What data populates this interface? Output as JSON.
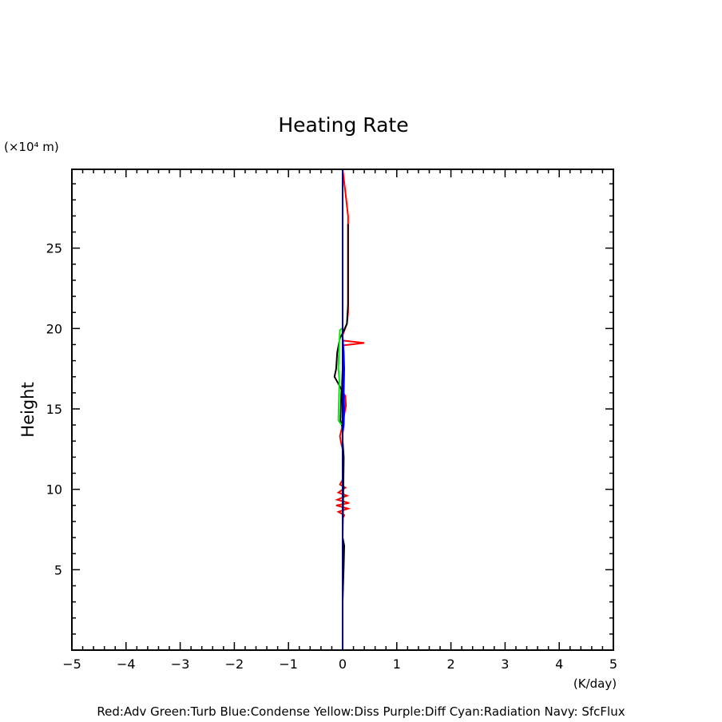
{
  "chart_data": {
    "type": "line",
    "title": "Heating Rate",
    "xlabel": "(K/day)",
    "ylabel": "Height",
    "yunit": "(×10⁴ m)",
    "xlim": [
      -5,
      5
    ],
    "ylim": [
      0,
      29.9
    ],
    "xticks": [
      -5,
      -4,
      -3,
      -2,
      -1,
      0,
      1,
      2,
      3,
      4,
      5
    ],
    "yticks": [
      5,
      10,
      15,
      20,
      25
    ],
    "grid": false,
    "legend_text": "Red:Adv  Green:Turb  Blue:Condense  Yellow:Diss  Purple:Diff  Cyan:Radiation  Navy: SfcFlux",
    "series": [
      {
        "color": "#ff0000",
        "points": [
          [
            0,
            29.9
          ],
          [
            0.05,
            28.5
          ],
          [
            0.1,
            27
          ],
          [
            0.1,
            21
          ],
          [
            0.08,
            20.3
          ],
          [
            0.0,
            19.6
          ],
          [
            0.0,
            19.25
          ],
          [
            0.4,
            19.1
          ],
          [
            0.0,
            18.95
          ],
          [
            0.0,
            17.5
          ],
          [
            -0.02,
            16.2
          ],
          [
            0.05,
            15.8
          ],
          [
            0.06,
            15.2
          ],
          [
            0.02,
            14.5
          ],
          [
            0.0,
            14
          ],
          [
            -0.05,
            13.3
          ],
          [
            -0.03,
            12.9
          ],
          [
            0.0,
            12.5
          ],
          [
            0.0,
            10.6
          ],
          [
            -0.05,
            10.3
          ],
          [
            0.05,
            10.1
          ],
          [
            -0.08,
            9.8
          ],
          [
            0.08,
            9.6
          ],
          [
            -0.1,
            9.35
          ],
          [
            0.12,
            9.15
          ],
          [
            -0.12,
            9.0
          ],
          [
            0.1,
            8.8
          ],
          [
            -0.08,
            8.6
          ],
          [
            0.03,
            8.4
          ],
          [
            0.0,
            8.2
          ],
          [
            0.0,
            0
          ]
        ]
      },
      {
        "color": "#000000",
        "points": [
          [
            0.1,
            26.5
          ],
          [
            0.1,
            21.5
          ],
          [
            0.08,
            20.3
          ],
          [
            0.0,
            19.7
          ],
          [
            -0.05,
            19.4
          ],
          [
            -0.1,
            18.5
          ],
          [
            -0.12,
            17.5
          ],
          [
            -0.15,
            17.0
          ],
          [
            -0.1,
            16.7
          ],
          [
            -0.02,
            16.2
          ],
          [
            -0.03,
            15.5
          ],
          [
            -0.04,
            14.3
          ],
          [
            0.0,
            13.8
          ],
          [
            0.0,
            13.0
          ],
          [
            0.02,
            12.0
          ],
          [
            0.0,
            7.0
          ],
          [
            0.03,
            6.5
          ],
          [
            0.02,
            5.3
          ],
          [
            0.0,
            3.0
          ],
          [
            0.0,
            1.5
          ]
        ]
      },
      {
        "color": "#00ee00",
        "points": [
          [
            -0.01,
            20.0
          ],
          [
            -0.05,
            19.9
          ],
          [
            -0.07,
            18.5
          ],
          [
            -0.08,
            17.5
          ],
          [
            -0.06,
            16.8
          ],
          [
            -0.07,
            15.5
          ],
          [
            -0.08,
            14.3
          ],
          [
            -0.02,
            14.0
          ]
        ]
      },
      {
        "color": "#0000ff",
        "points": [
          [
            0.0,
            19.5
          ],
          [
            0.02,
            18.5
          ],
          [
            0.03,
            17.5
          ],
          [
            0.02,
            16.0
          ],
          [
            0.03,
            15.0
          ],
          [
            0.02,
            14.0
          ],
          [
            0.0,
            13.5
          ]
        ]
      },
      {
        "color": "#000080",
        "points": [
          [
            0,
            29.9
          ],
          [
            0,
            0
          ]
        ]
      }
    ]
  }
}
